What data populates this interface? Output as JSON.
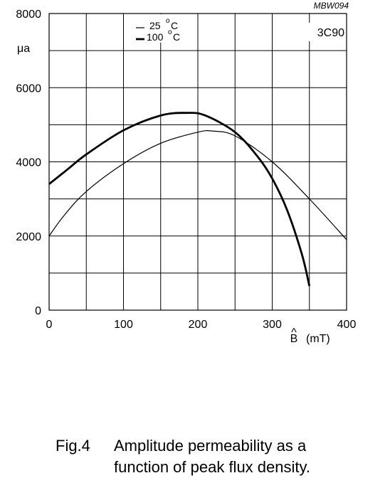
{
  "chart_data": {
    "type": "line",
    "figure_code": "MBW094",
    "material": "3C90",
    "ylabel": "μa",
    "xlabel": "B (mT)",
    "xlabel_symbol": "B",
    "xlabel_hat": "^",
    "xlabel_unit": "(mT)",
    "xlim": [
      0,
      400
    ],
    "ylim": [
      0,
      8000
    ],
    "x_ticks": [
      "0",
      "100",
      "200",
      "300",
      "400"
    ],
    "y_ticks": [
      "0",
      "2000",
      "4000",
      "6000",
      "8000"
    ],
    "grid": true,
    "legend_position": "top-center",
    "series": [
      {
        "name": "25 °C",
        "legend_value": "25",
        "line": "thin",
        "x": [
          0,
          20,
          50,
          100,
          150,
          200,
          220,
          250,
          300,
          350,
          400
        ],
        "y": [
          2000,
          2550,
          3200,
          3950,
          4500,
          4800,
          4830,
          4700,
          4000,
          3000,
          1900
        ]
      },
      {
        "name": "100 °C",
        "legend_value": "100",
        "line": "thick",
        "x": [
          0,
          25,
          50,
          100,
          150,
          185,
          210,
          250,
          280,
          300,
          320,
          340,
          350
        ],
        "y": [
          3400,
          3800,
          4200,
          4850,
          5250,
          5320,
          5250,
          4800,
          4150,
          3550,
          2700,
          1500,
          650
        ]
      }
    ],
    "legend_unit": "°C"
  },
  "caption": {
    "number": "Fig.4",
    "line1": "Amplitude permeability as a",
    "line2": "function of peak flux density."
  }
}
